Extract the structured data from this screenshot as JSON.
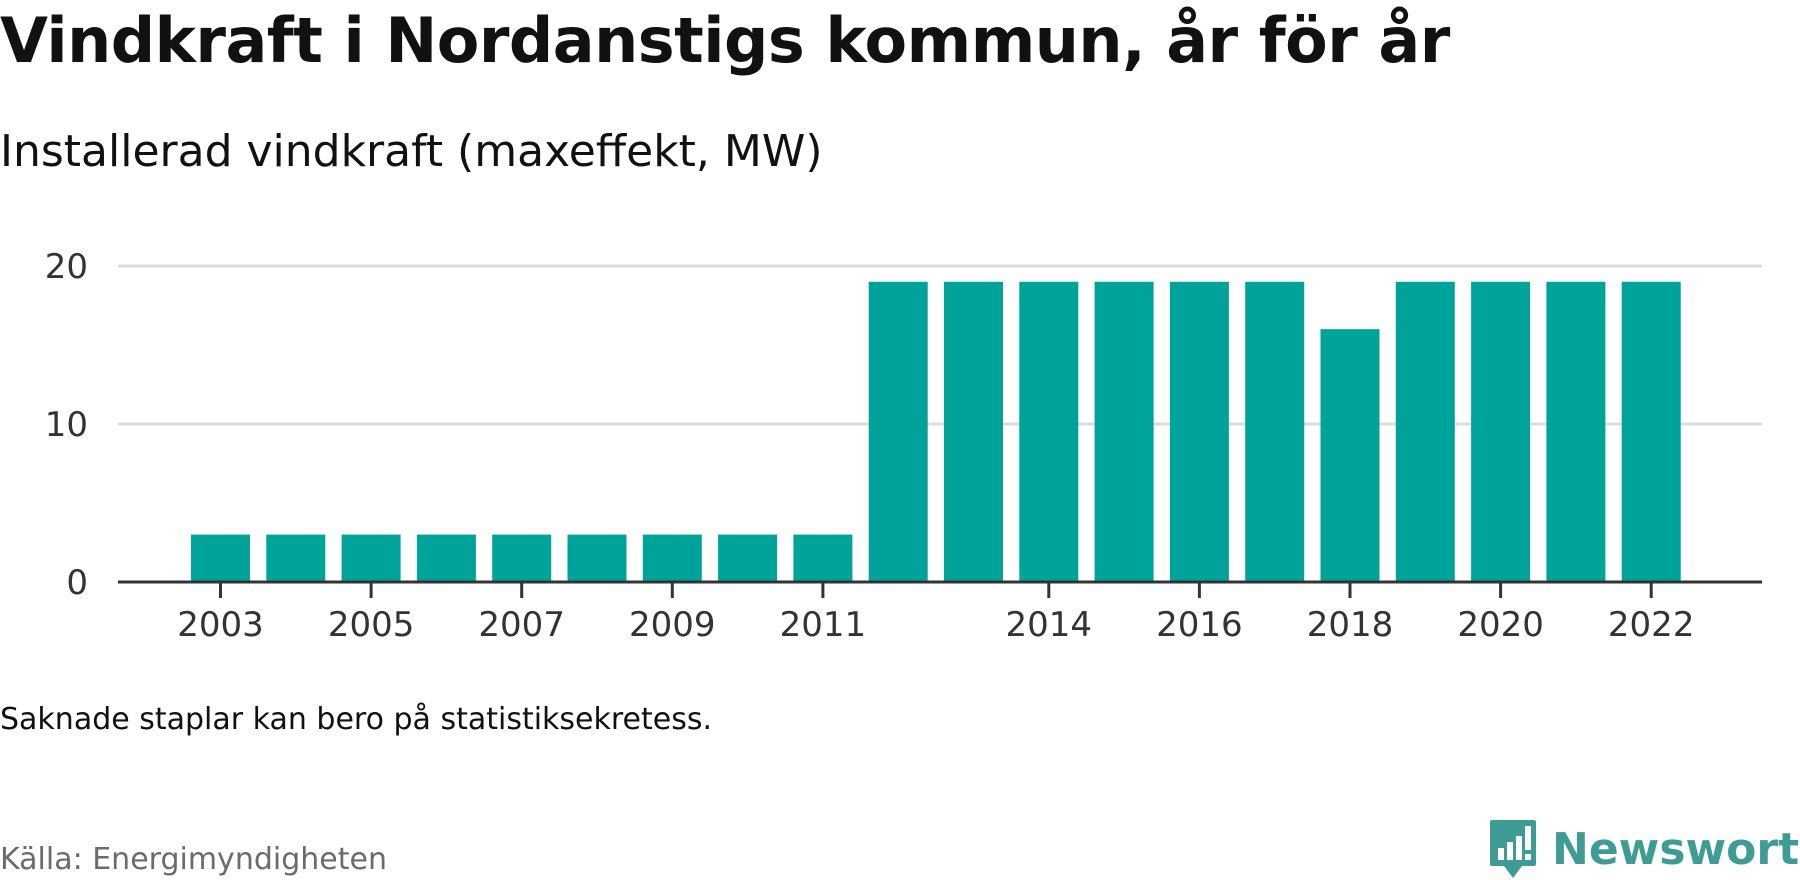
{
  "title": "Vindkraft i Nordanstigs kommun, år för år",
  "subtitle": "Installerad vindkraft (maxeffekt, MW)",
  "note": "Saknade staplar kan bero på statistiksekretess.",
  "source": "Källa: Energimyndigheten",
  "brand": {
    "name": "Newsworthy",
    "icon": "newsworthy-logo-icon",
    "color": "#3e9c95"
  },
  "chart_data": {
    "type": "bar",
    "categories": [
      "2003",
      "2004",
      "2005",
      "2006",
      "2007",
      "2008",
      "2009",
      "2010",
      "2011",
      "2012",
      "2013",
      "2014",
      "2015",
      "2016",
      "2017",
      "2018",
      "2019",
      "2020",
      "2021",
      "2022"
    ],
    "values": [
      3,
      3,
      3,
      3,
      3,
      3,
      3,
      3,
      3,
      19,
      19,
      19,
      19,
      19,
      19,
      16,
      19,
      19,
      19,
      19
    ],
    "x_tick_labels": [
      "2003",
      "2005",
      "2007",
      "2009",
      "2011",
      "2014",
      "2016",
      "2018",
      "2020",
      "2022"
    ],
    "y_ticks": [
      0,
      10,
      20
    ],
    "ylim": [
      0,
      20
    ],
    "grid": true,
    "bar_color": "#00a39a",
    "xlabel": "",
    "ylabel": ""
  }
}
